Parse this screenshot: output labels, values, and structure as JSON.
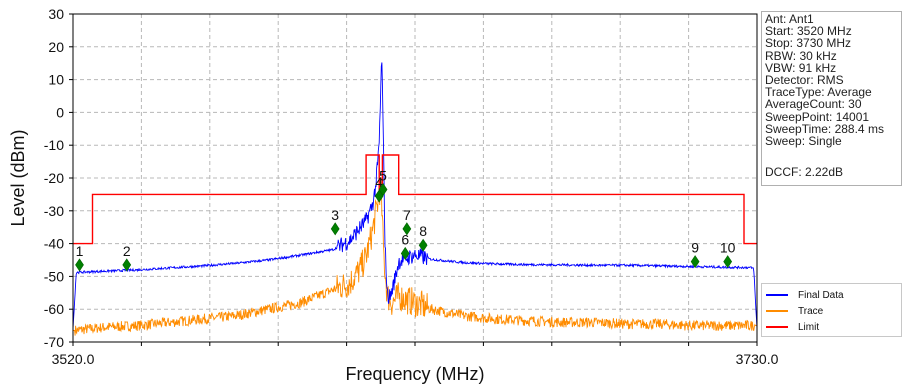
{
  "chart_data": {
    "type": "line",
    "xlabel": "Frequency (MHz)",
    "ylabel": "Level (dBm)",
    "xlim": [
      3520.0,
      3730.0
    ],
    "ylim": [
      -70,
      30
    ],
    "x_tick_labels": [
      "3520.0",
      "3730.0"
    ],
    "y_ticks": [
      -70,
      -60,
      -50,
      -40,
      -30,
      -20,
      -10,
      0,
      10,
      20,
      30
    ],
    "grid": true,
    "legend_placement": "bottom-right",
    "colors": {
      "final": "#0000ff",
      "trace": "#ff8c00",
      "limit": "#ff0000",
      "marker": "#008000"
    },
    "series": [
      {
        "name": "Final Data",
        "x": [
          3520.0,
          3521.0,
          3530,
          3540,
          3550,
          3560,
          3570,
          3580,
          3590,
          3600,
          3605,
          3610,
          3612,
          3613,
          3614,
          3614.8,
          3615.3,
          3615.8,
          3616.5,
          3617.5,
          3619,
          3620,
          3622,
          3625,
          3630,
          3640,
          3650,
          3660,
          3670,
          3680,
          3690,
          3700,
          3710,
          3720,
          3728,
          3729.0,
          3730.0
        ],
        "y": [
          -66,
          -48.8,
          -48.4,
          -48.0,
          -47.4,
          -46.8,
          -46.0,
          -45.0,
          -43.5,
          -41.8,
          -39.0,
          -33.0,
          -28.0,
          -22.0,
          -10.0,
          17.5,
          -10.0,
          -40.0,
          -56.0,
          -56.0,
          -50.0,
          -45.5,
          -44.5,
          -43.5,
          -44.8,
          -45.8,
          -46.2,
          -46.4,
          -46.5,
          -46.6,
          -46.6,
          -46.8,
          -47.0,
          -47.2,
          -47.3,
          -47.6,
          -66.0
        ]
      },
      {
        "name": "Trace",
        "x": [
          3520.0,
          3530,
          3540,
          3550,
          3560,
          3570,
          3580,
          3590,
          3600,
          3605,
          3608,
          3610,
          3612,
          3613.5,
          3614.5,
          3615.0,
          3615.5,
          3616.5,
          3618,
          3620,
          3622,
          3625,
          3630,
          3640,
          3650,
          3660,
          3670,
          3680,
          3690,
          3700,
          3710,
          3720,
          3730.0
        ],
        "y": [
          -66.5,
          -65.5,
          -65.0,
          -64.0,
          -63.0,
          -62.0,
          -60.0,
          -58.0,
          -54.0,
          -52.0,
          -48.0,
          -44.0,
          -36.0,
          -28.0,
          -22.0,
          -34.0,
          -45.0,
          -56.0,
          -58.0,
          -56.0,
          -57.0,
          -58.0,
          -60.0,
          -62.0,
          -63.0,
          -63.5,
          -64.0,
          -64.0,
          -64.5,
          -64.5,
          -65.0,
          -65.0,
          -65.0
        ]
      },
      {
        "name": "Limit",
        "x": [
          3520.0,
          3526,
          3526,
          3610,
          3610,
          3614,
          3614,
          3615,
          3615,
          3620,
          3620,
          3726,
          3726,
          3730.0
        ],
        "y": [
          -40,
          -40,
          -25,
          -25,
          -13,
          -13,
          -25,
          -25,
          -13,
          -13,
          -25,
          -25,
          -40,
          -40
        ]
      }
    ],
    "markers": [
      {
        "label": "1",
        "x": 3522.0,
        "y": -46.5
      },
      {
        "label": "2",
        "x": 3536.5,
        "y": -46.5
      },
      {
        "label": "3",
        "x": 3600.5,
        "y": -35.5
      },
      {
        "label": "4",
        "x": 3614.0,
        "y": -25.5
      },
      {
        "label": "5",
        "x": 3615.2,
        "y": -23.5
      },
      {
        "label": "6",
        "x": 3622.0,
        "y": -43.0
      },
      {
        "label": "7",
        "x": 3622.5,
        "y": -35.5
      },
      {
        "label": "8",
        "x": 3627.5,
        "y": -40.5
      }
    ],
    "markers_right": [
      {
        "label": "9",
        "x": 3711.0,
        "y": -45.5
      },
      {
        "label": "10",
        "x": 3721.0,
        "y": -45.5
      }
    ]
  },
  "info": {
    "lines": [
      "Ant: Ant1",
      "Start: 3520 MHz",
      "Stop: 3730 MHz",
      "RBW: 30 kHz",
      "VBW: 91 kHz",
      "Detector: RMS",
      "TraceType: Average",
      "AverageCount: 30",
      "SweepPoint: 14001",
      "SweepTime: 288.4 ms",
      "Sweep: Single"
    ],
    "dccf": "DCCF: 2.22dB"
  },
  "legend": {
    "final_label": "Final Data",
    "trace_label": "Trace",
    "limit_label": "Limit"
  }
}
